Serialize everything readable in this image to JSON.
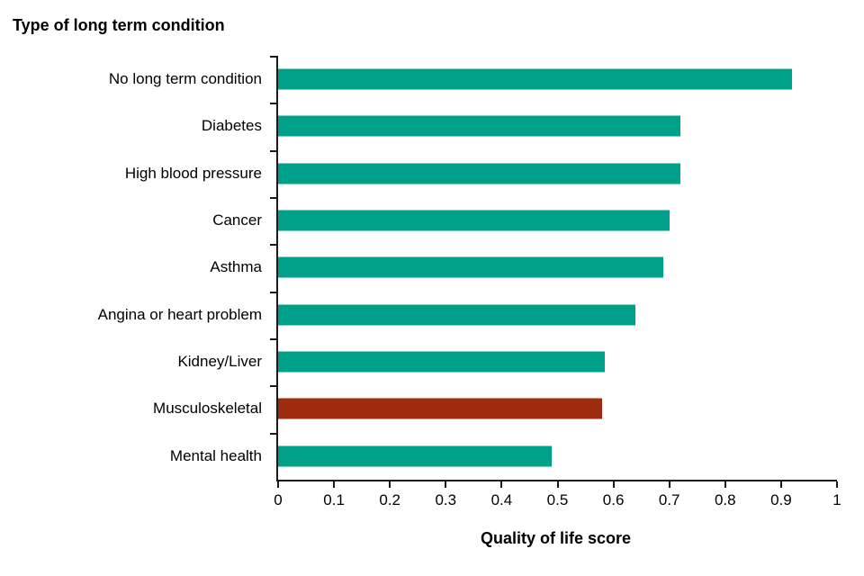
{
  "chart_data": {
    "type": "bar",
    "orientation": "horizontal",
    "title": "Type of long term condition",
    "xlabel": "Quality of life score",
    "xlim": [
      0,
      1
    ],
    "grid": false,
    "legend": "none",
    "categories": [
      "No long term condition",
      "Diabetes",
      "High blood pressure",
      "Cancer",
      "Asthma",
      "Angina or heart problem",
      "Kidney/Liver",
      "Musculoskeletal",
      "Mental health"
    ],
    "values": [
      0.92,
      0.72,
      0.72,
      0.7,
      0.69,
      0.64,
      0.585,
      0.58,
      0.49
    ],
    "colors": [
      "#00A18A",
      "#00A18A",
      "#00A18A",
      "#00A18A",
      "#00A18A",
      "#00A18A",
      "#00A18A",
      "#9E2B0E",
      "#00A18A"
    ],
    "default_bar_color": "#00A18A",
    "highlight_bar_color": "#9E2B0E",
    "axis_color": "#1a1a1a",
    "xticks": [
      {
        "v": 0,
        "label": "0"
      },
      {
        "v": 0.1,
        "label": "0.1"
      },
      {
        "v": 0.2,
        "label": "0.2"
      },
      {
        "v": 0.3,
        "label": "0.3"
      },
      {
        "v": 0.4,
        "label": "0.4"
      },
      {
        "v": 0.5,
        "label": "0.5"
      },
      {
        "v": 0.6,
        "label": "0.6"
      },
      {
        "v": 0.7,
        "label": "0.7"
      },
      {
        "v": 0.8,
        "label": "0.8"
      },
      {
        "v": 0.9,
        "label": "0.9"
      },
      {
        "v": 1,
        "label": "1"
      }
    ]
  }
}
